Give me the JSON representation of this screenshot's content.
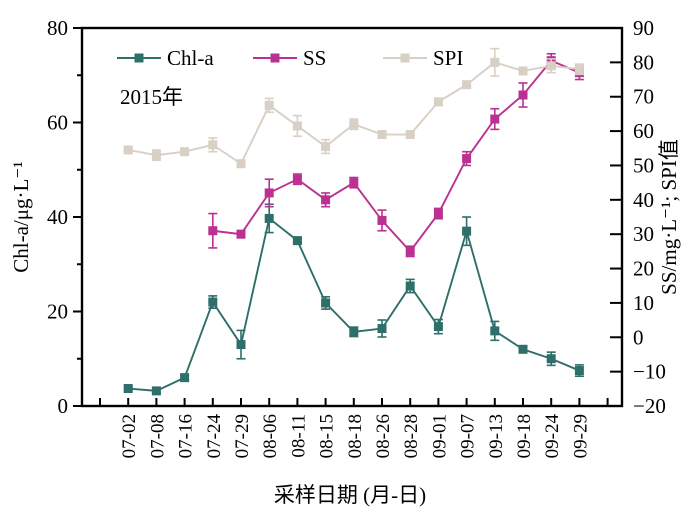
{
  "chart_data": {
    "type": "line",
    "annotation": "2015年",
    "xlabel": "采样日期 (月-日)",
    "grid": false,
    "legend_position": "top-center-inside",
    "categories": [
      "07-02",
      "07-08",
      "07-16",
      "07-24",
      "07-29",
      "08-06",
      "08-11",
      "08-15",
      "08-18",
      "08-26",
      "08-28",
      "09-01",
      "09-07",
      "09-13",
      "09-18",
      "09-24",
      "09-29"
    ],
    "axes": {
      "left": {
        "label": "Chl-a/μg·L⁻¹",
        "min": 0,
        "max": 80,
        "tick_step": 20,
        "minor_step": 10,
        "ticks": [
          0,
          20,
          40,
          60,
          80
        ]
      },
      "right": {
        "label": "SS/mg·L⁻¹; SPI值",
        "min": -20,
        "max": 90,
        "tick_step": 10,
        "ticks": [
          -20,
          -10,
          0,
          10,
          20,
          30,
          40,
          50,
          60,
          70,
          80,
          90
        ]
      }
    },
    "series": [
      {
        "name": "Chl-a",
        "axis": "left",
        "color": "#2e6f69",
        "values": [
          3.7,
          3.2,
          6.0,
          22.0,
          13.0,
          39.7,
          35.0,
          21.8,
          15.7,
          16.4,
          25.4,
          16.8,
          37.0,
          15.9,
          12.0,
          10.0,
          7.5
        ],
        "errors": [
          0.4,
          0.4,
          0.6,
          1.3,
          3.0,
          3.0,
          0.6,
          1.3,
          1.0,
          1.8,
          1.4,
          1.5,
          3.0,
          2.0,
          0.6,
          1.4,
          1.2
        ]
      },
      {
        "name": "SS",
        "axis": "right",
        "color": "#bb3191",
        "values": [
          null,
          null,
          null,
          31,
          30,
          42,
          46,
          40,
          45,
          34,
          25,
          36,
          52,
          63.5,
          70.5,
          80.5,
          77
        ],
        "errors": [
          null,
          null,
          null,
          5,
          1,
          4,
          1.5,
          2,
          1.5,
          3,
          1.5,
          1.5,
          2,
          3,
          3.5,
          2,
          2
        ]
      },
      {
        "name": "SPI",
        "axis": "right",
        "color": "#d8d0c5",
        "values": [
          54.5,
          53,
          54,
          56,
          50.5,
          67.5,
          61.5,
          55.5,
          62,
          59,
          59,
          68.5,
          73.5,
          80,
          77.5,
          79,
          78
        ],
        "errors": [
          0.4,
          1.5,
          0.4,
          2,
          0.4,
          2,
          3,
          2,
          1.5,
          1,
          0.3,
          1,
          1,
          4,
          0.4,
          2,
          1.5
        ]
      }
    ]
  }
}
